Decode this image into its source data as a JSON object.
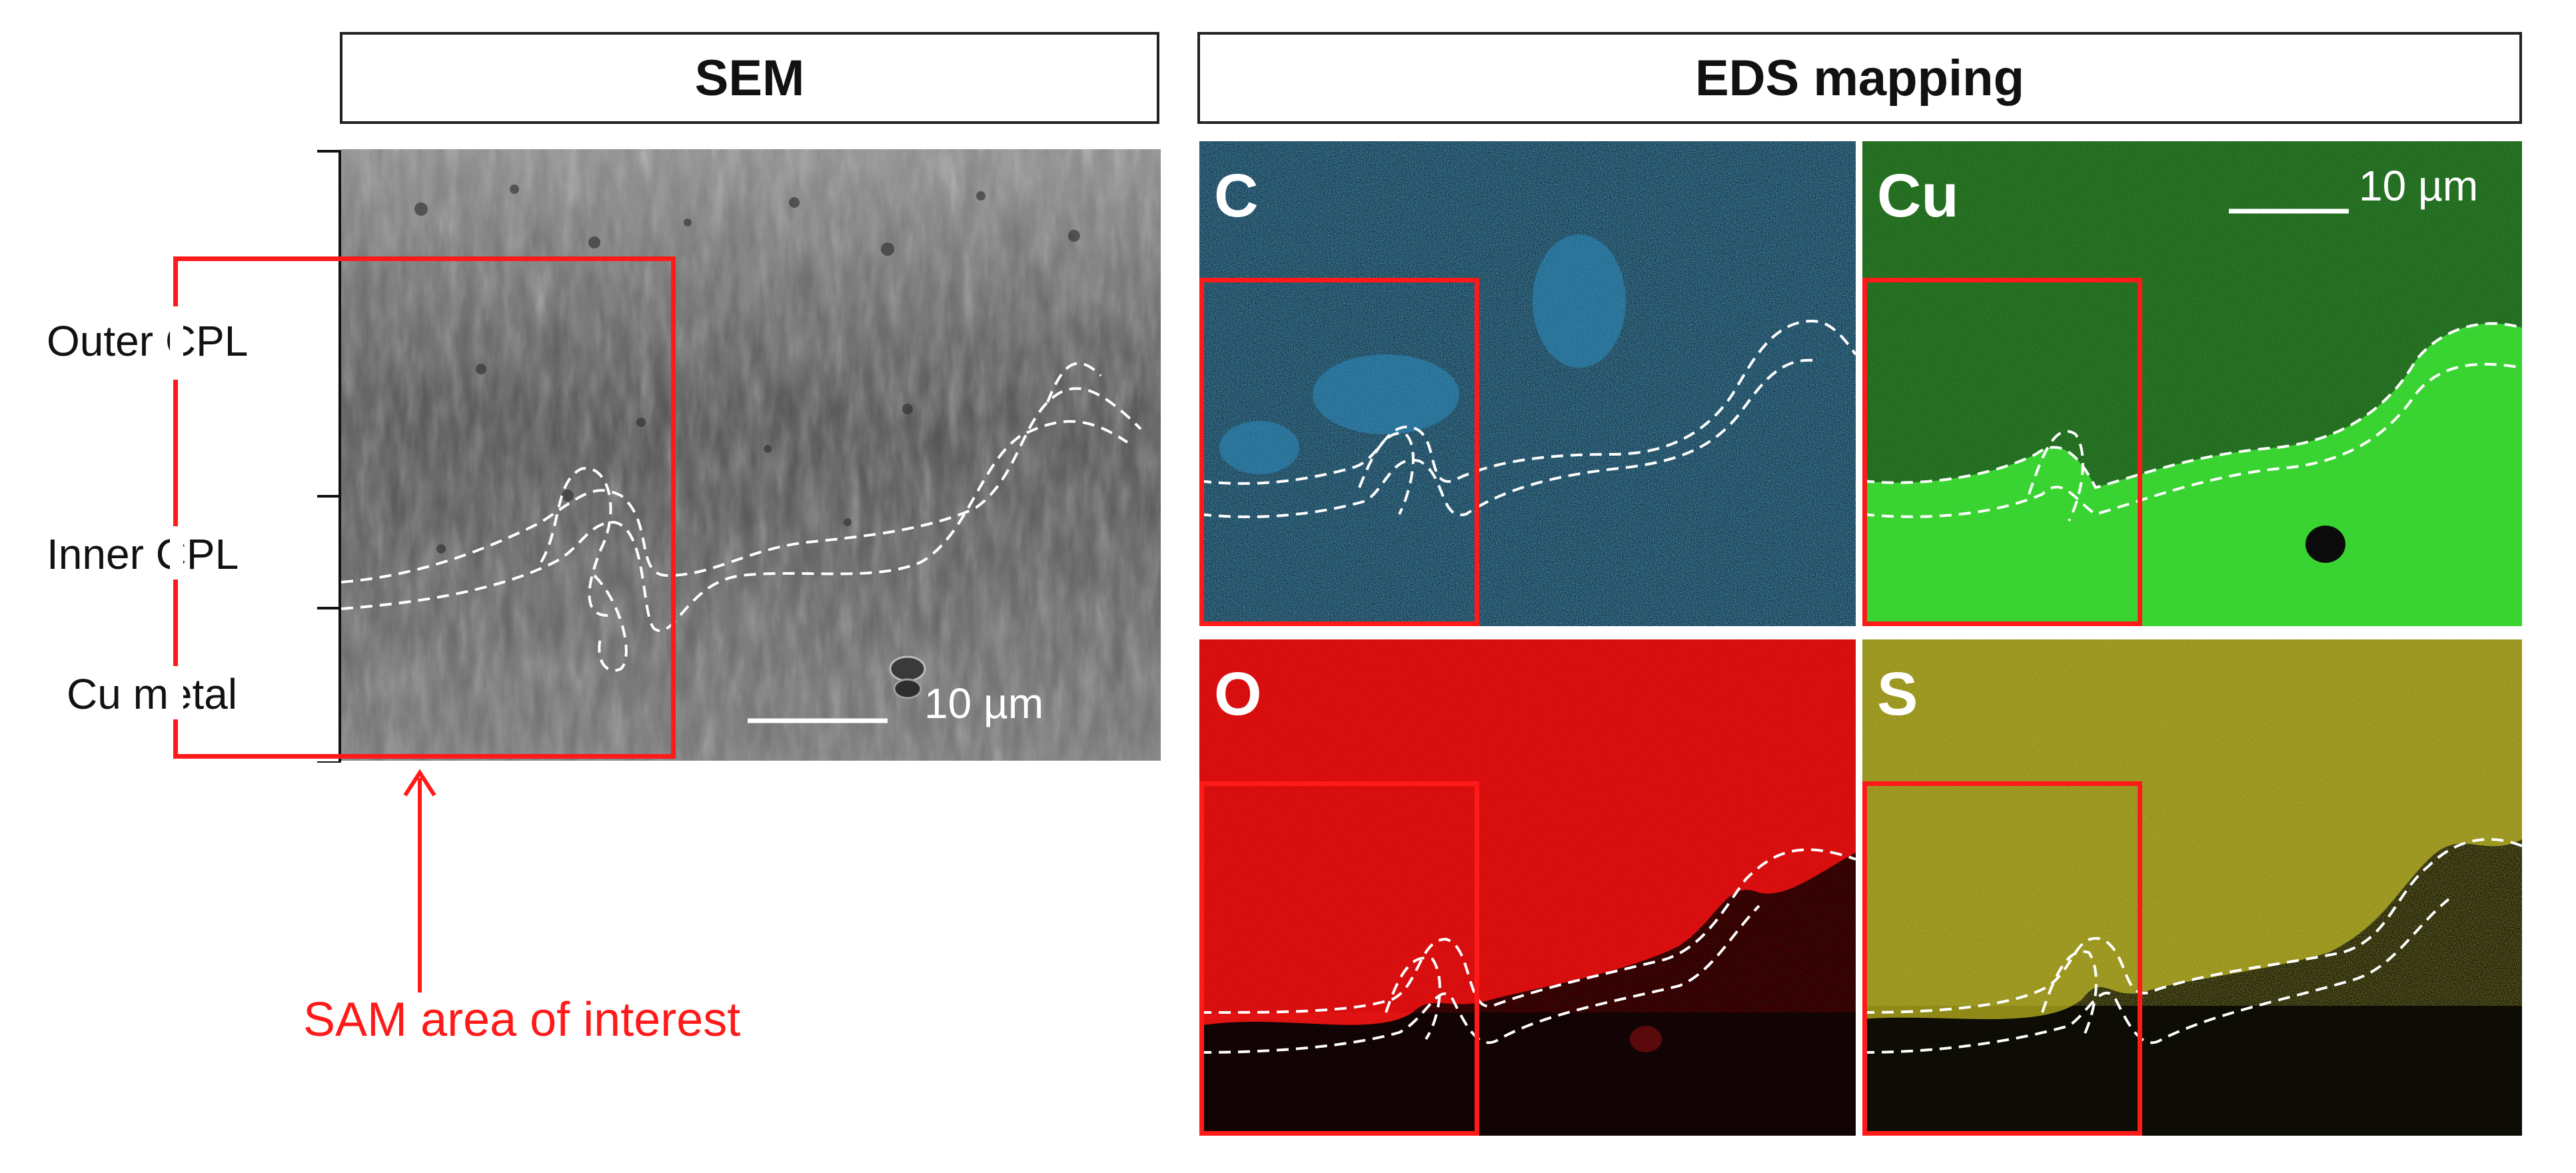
{
  "headers": {
    "sem": "SEM",
    "eds": "EDS mapping"
  },
  "layers": {
    "outer": "Outer CPL",
    "inner": "Inner CPL",
    "metal": "Cu metal"
  },
  "scale_bar": "10 µm",
  "eds_maps": [
    {
      "element": "C",
      "color": "#1f78a8"
    },
    {
      "element": "Cu",
      "color": "#22c21f"
    },
    {
      "element": "O",
      "color": "#e01010"
    },
    {
      "element": "S",
      "color": "#b7b01c"
    }
  ],
  "annotation": "SAM area of interest",
  "colors": {
    "roi": "#ff1a1a",
    "boundary": "#ffffff",
    "sem_gray": "#6b6b6b"
  }
}
